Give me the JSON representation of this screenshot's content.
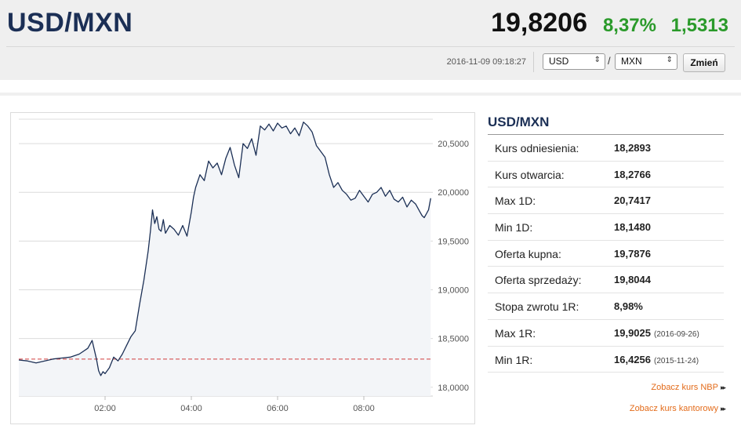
{
  "header": {
    "pair": "USD/MXN",
    "price": "19,8206",
    "change_pct": "8,37%",
    "change_abs": "1,5313",
    "timestamp": "2016-11-09 09:18:27",
    "base_currency": "USD",
    "quote_currency": "MXN",
    "slash": "/",
    "change_button": "Zmień",
    "accent_color": "#1b2f55",
    "up_color": "#2a9a2a"
  },
  "panel": {
    "title": "USD/MXN",
    "rows": [
      {
        "label": "Kurs odniesienia:",
        "value": "18,2893"
      },
      {
        "label": "Kurs otwarcia:",
        "value": "18,2766"
      },
      {
        "label": "Max 1D:",
        "value": "20,7417"
      },
      {
        "label": "Min 1D:",
        "value": "18,1480"
      },
      {
        "label": "Oferta kupna:",
        "value": "19,7876"
      },
      {
        "label": "Oferta sprzedaży:",
        "value": "19,8044"
      },
      {
        "label": "Stopa zwrotu 1R:",
        "value": "8,98%"
      },
      {
        "label": "Max 1R:",
        "value": "19,9025",
        "date": "(2016-09-26)"
      },
      {
        "label": "Min 1R:",
        "value": "16,4256",
        "date": "(2015-11-24)"
      }
    ],
    "links": [
      {
        "label": "Zobacz kurs NBP",
        "arrows": "▸▸"
      },
      {
        "label": "Zobacz kurs kantorowy",
        "arrows": "▸▸"
      }
    ]
  },
  "chart_data": {
    "type": "line",
    "x_ticks": [
      {
        "label": "02:00",
        "h": 2
      },
      {
        "label": "04:00",
        "h": 4
      },
      {
        "label": "06:00",
        "h": 6
      },
      {
        "label": "08:00",
        "h": 8
      }
    ],
    "y_ticks": [
      {
        "label": "18,0000",
        "v": 18.0
      },
      {
        "label": "18,5000",
        "v": 18.5
      },
      {
        "label": "19,0000",
        "v": 19.0
      },
      {
        "label": "19,5000",
        "v": 19.5
      },
      {
        "label": "20,0000",
        "v": 20.0
      },
      {
        "label": "20,5000",
        "v": 20.5
      }
    ],
    "ylim": [
      17.95,
      20.75
    ],
    "xlim": [
      0.0,
      9.6
    ],
    "reference_line": 18.2893,
    "reference_color": "#d23c3c",
    "line_color": "#1b2f55",
    "area_color": "#f3f5f8",
    "series": [
      {
        "x": [
          0.0,
          0.2,
          0.4,
          0.6,
          0.8,
          1.0,
          1.2,
          1.4,
          1.6,
          1.7,
          1.8,
          1.85,
          1.9,
          1.95,
          2.0,
          2.1,
          2.2,
          2.3,
          2.4,
          2.5,
          2.6,
          2.7,
          2.8,
          2.9,
          3.0,
          3.05,
          3.1,
          3.15,
          3.2,
          3.25,
          3.3,
          3.35,
          3.4,
          3.5,
          3.6,
          3.7,
          3.8,
          3.9,
          4.0,
          4.05,
          4.1,
          4.2,
          4.3,
          4.4,
          4.5,
          4.6,
          4.7,
          4.8,
          4.9,
          5.0,
          5.1,
          5.2,
          5.3,
          5.4,
          5.5,
          5.6,
          5.7,
          5.8,
          5.9,
          6.0,
          6.1,
          6.2,
          6.3,
          6.4,
          6.5,
          6.6,
          6.7,
          6.8,
          6.9,
          7.0,
          7.1,
          7.2,
          7.3,
          7.4,
          7.5,
          7.6,
          7.7,
          7.8,
          7.9,
          8.0,
          8.1,
          8.2,
          8.3,
          8.4,
          8.5,
          8.6,
          8.7,
          8.8,
          8.9,
          9.0,
          9.1,
          9.2,
          9.3,
          9.35,
          9.4,
          9.45,
          9.5,
          9.55
        ],
        "y": [
          18.28,
          18.27,
          18.25,
          18.27,
          18.29,
          18.3,
          18.31,
          18.34,
          18.4,
          18.48,
          18.29,
          18.17,
          18.12,
          18.16,
          18.14,
          18.2,
          18.31,
          18.27,
          18.34,
          18.43,
          18.52,
          18.58,
          18.85,
          19.1,
          19.4,
          19.6,
          19.82,
          19.68,
          19.75,
          19.62,
          19.6,
          19.72,
          19.58,
          19.66,
          19.62,
          19.56,
          19.66,
          19.55,
          19.8,
          19.95,
          20.05,
          20.18,
          20.12,
          20.32,
          20.25,
          20.3,
          20.18,
          20.35,
          20.46,
          20.28,
          20.15,
          20.5,
          20.45,
          20.55,
          20.38,
          20.68,
          20.64,
          20.7,
          20.63,
          20.71,
          20.66,
          20.68,
          20.6,
          20.66,
          20.58,
          20.72,
          20.68,
          20.62,
          20.48,
          20.42,
          20.36,
          20.18,
          20.05,
          20.1,
          20.02,
          19.98,
          19.92,
          19.94,
          20.02,
          19.96,
          19.9,
          19.98,
          20.0,
          20.05,
          19.96,
          20.02,
          19.93,
          19.9,
          19.95,
          19.85,
          19.92,
          19.88,
          19.8,
          19.76,
          19.74,
          19.78,
          19.82,
          19.94
        ]
      }
    ]
  }
}
